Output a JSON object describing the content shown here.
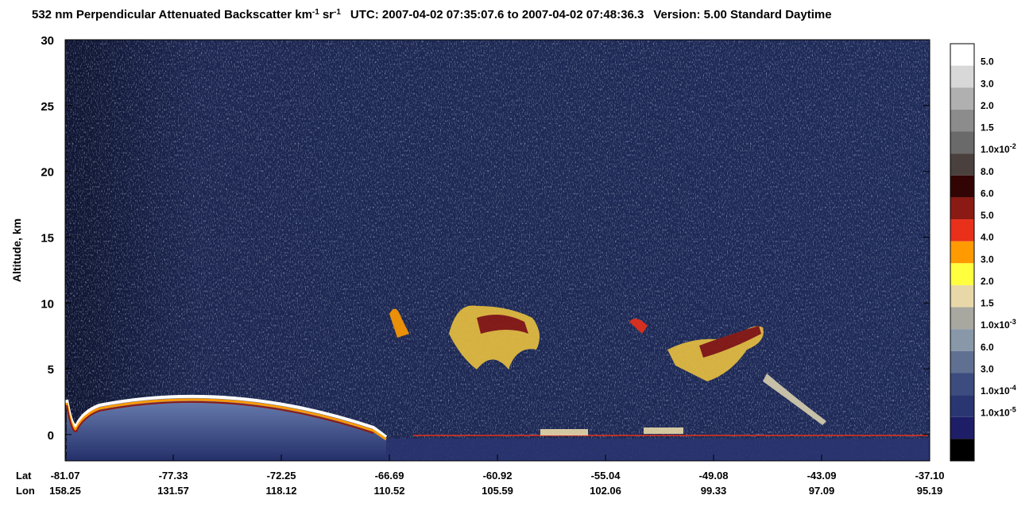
{
  "chart_data": {
    "type": "heatmap",
    "title": [
      "532 nm Perpendicular Attenuated Backscatter km",
      "-1",
      "sr",
      "-1",
      "UTC: 2007-04-02 07:35:07.6 to 2007-04-02 07:48:36.3",
      "Version: 5.00 Standard Daytime"
    ],
    "ylabel": "Altitude, km",
    "ylim": [
      -2,
      30
    ],
    "yticks": [
      0,
      5,
      10,
      15,
      20,
      25,
      30
    ],
    "x_row_labels": [
      "Lat",
      "Lon"
    ],
    "lat": [
      "-81.07",
      "-77.33",
      "-72.25",
      "-66.69",
      "-60.92",
      "-55.04",
      "-49.08",
      "-43.09",
      "-37.10"
    ],
    "lon": [
      "158.25",
      "131.57",
      "118.12",
      "110.52",
      "105.59",
      "102.06",
      "99.33",
      "97.09",
      "95.19"
    ],
    "colorbar": {
      "colors": [
        "#ffffff",
        "#d8d8d8",
        "#b0b0b0",
        "#8c8c8c",
        "#6a6a6a",
        "#4a403e",
        "#320404",
        "#8c1a14",
        "#e8301a",
        "#ff9a00",
        "#ffff40",
        "#e8d8a8",
        "#a8a8a0",
        "#8898a8",
        "#607092",
        "#3c4c7e",
        "#2a3672",
        "#1e1e68",
        "#000000"
      ],
      "labels": [
        "5.0",
        "3.0",
        "2.0",
        "1.5",
        [
          "1.0x10",
          "-2"
        ],
        "8.0",
        "6.0",
        "5.0",
        "4.0",
        "3.0",
        "2.0",
        "1.5",
        [
          "1.0x10",
          "-3"
        ],
        "6.0",
        "3.0",
        [
          "1.0x10",
          "-4"
        ],
        [
          "1.0x10",
          "-5"
        ]
      ]
    }
  }
}
